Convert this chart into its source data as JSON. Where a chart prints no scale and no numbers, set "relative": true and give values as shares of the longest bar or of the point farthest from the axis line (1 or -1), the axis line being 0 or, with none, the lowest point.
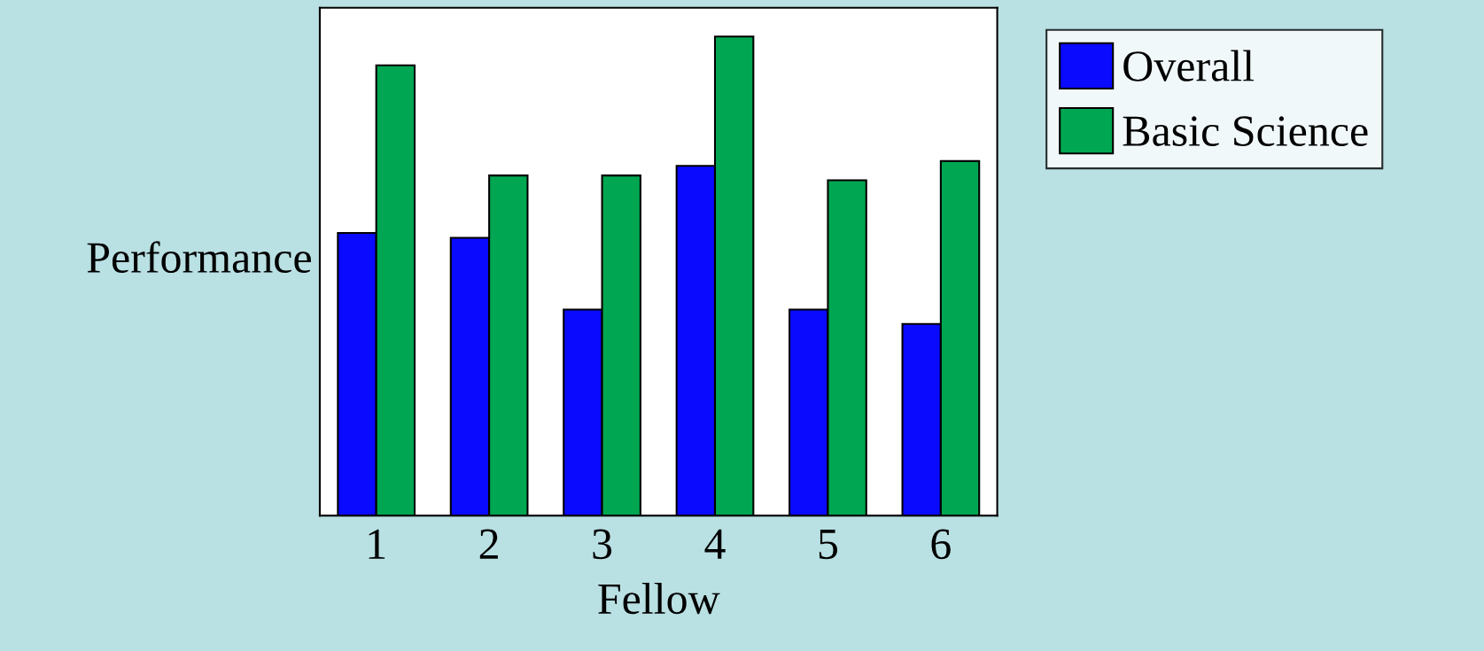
{
  "chart_data": {
    "type": "bar",
    "xlabel": "Fellow",
    "ylabel": "Performance",
    "relative": true,
    "categories": [
      "1",
      "2",
      "3",
      "4",
      "5",
      "6"
    ],
    "series": [
      {
        "name": "Overall",
        "color": "#0a0aff",
        "values": [
          0.59,
          0.58,
          0.43,
          0.73,
          0.43,
          0.4
        ]
      },
      {
        "name": "Basic Science",
        "color": "#00a651",
        "values": [
          0.94,
          0.71,
          0.71,
          1.0,
          0.7,
          0.74
        ]
      }
    ],
    "legend": "right",
    "grid": false
  }
}
